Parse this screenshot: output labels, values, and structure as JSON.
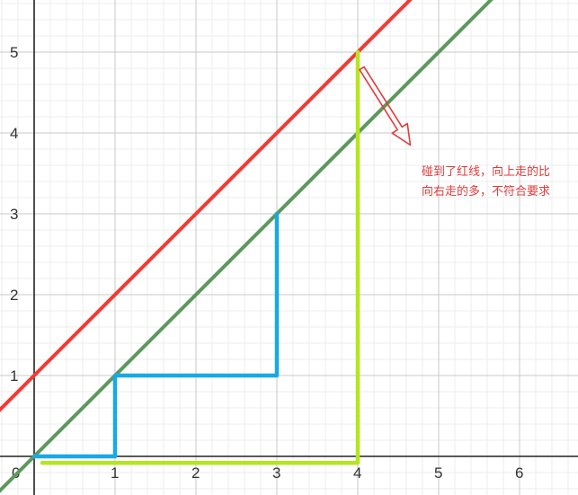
{
  "chart_data": {
    "type": "line",
    "xlim": [
      -0.45,
      6.7
    ],
    "ylim": [
      -0.45,
      5.65
    ],
    "grid": true,
    "minor_grid_divisions": 5,
    "x_tick_labels": [
      "0",
      "1",
      "2",
      "3",
      "4",
      "5",
      "6"
    ],
    "y_tick_labels": [
      "1",
      "2",
      "3",
      "4",
      "5"
    ],
    "lines": [
      {
        "slope": 1,
        "intercept": 1,
        "color": "#ef3b36"
      },
      {
        "slope": 1,
        "intercept": 0,
        "color": "#5a9a5a"
      }
    ],
    "paths": [
      {
        "color": "#19a8e6",
        "points": [
          [
            0,
            0
          ],
          [
            1,
            0
          ],
          [
            1,
            1
          ],
          [
            3,
            1
          ],
          [
            3,
            3
          ]
        ]
      },
      {
        "color": "#b5e61d",
        "points": [
          [
            0.1,
            -0.08
          ],
          [
            4,
            -0.08
          ],
          [
            4,
            5
          ]
        ]
      }
    ],
    "annotation": {
      "lines": [
        "碰到了红线，向上走的比",
        "向右走的多，不符合要求"
      ],
      "color": "#e23b3b",
      "arrow_from": [
        4.05,
        4.8
      ],
      "arrow_to": [
        4.65,
        3.85
      ]
    }
  }
}
